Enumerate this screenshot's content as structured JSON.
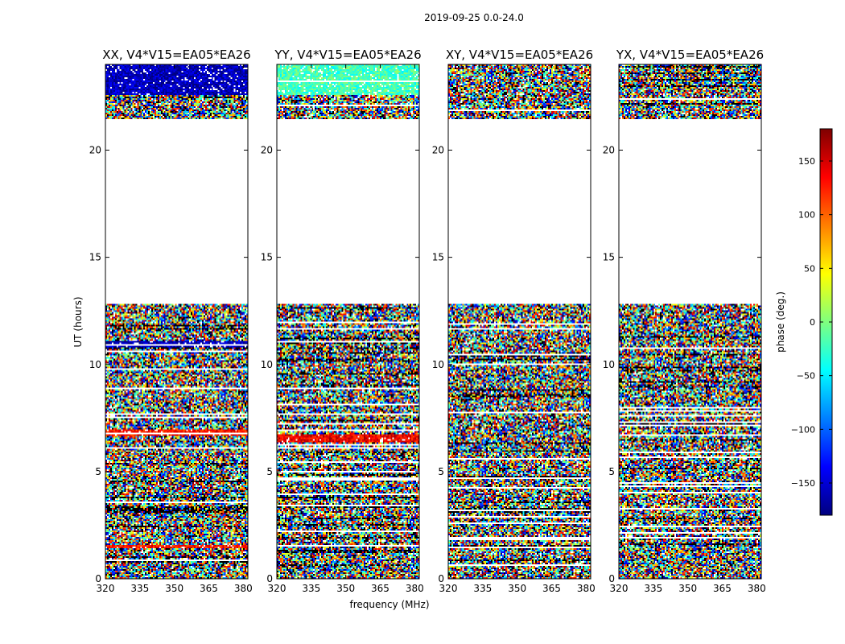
{
  "chart_data": {
    "type": "heatmap",
    "suptitle": "2019-09-25 0.0-24.0",
    "xlabel": "frequency (MHz)",
    "ylabel": "UT (hours)",
    "xlim": [
      320,
      382
    ],
    "ylim": [
      0,
      24
    ],
    "xticks": [
      320,
      335,
      350,
      365,
      380
    ],
    "xtick_labels": [
      "320",
      "335",
      "350",
      "365",
      "380"
    ],
    "yticks": [
      0,
      5,
      10,
      15,
      20
    ],
    "ytick_labels": [
      "0",
      "5",
      "10",
      "15",
      "20"
    ],
    "colormap": "jet",
    "colorbar": {
      "label": "phase (deg.)",
      "range": [
        -180,
        180
      ],
      "ticks": [
        -150,
        -100,
        -50,
        0,
        50,
        100,
        150
      ],
      "tick_labels": [
        "−150",
        "−100",
        "−50",
        "0",
        "50",
        "100",
        "150"
      ]
    },
    "data_ut_ranges": [
      [
        0.0,
        12.85
      ],
      [
        21.45,
        24.0
      ]
    ],
    "no_data_ut_range": [
      12.85,
      21.45
    ],
    "panels": [
      {
        "title": "XX, V4*V15=EA05*EA26",
        "pol": "XX",
        "coherent_ut_ranges": [
          [
            22.55,
            24.0
          ],
          [
            6.65,
            6.95
          ],
          [
            10.8,
            11.1
          ],
          [
            1.45,
            1.6
          ]
        ],
        "coherent_phase": [
          -160,
          130
        ]
      },
      {
        "title": "YY, V4*V15=EA05*EA26",
        "pol": "YY",
        "coherent_ut_ranges": [
          [
            22.55,
            24.0
          ],
          [
            6.4,
            6.75
          ]
        ],
        "coherent_phase": [
          -20,
          140
        ]
      },
      {
        "title": "XY, V4*V15=EA05*EA26",
        "pol": "XY",
        "coherent_ut_ranges": [],
        "coherent_phase": []
      },
      {
        "title": "YX, V4*V15=EA05*EA26",
        "pol": "YX",
        "coherent_ut_ranges": [],
        "coherent_phase": []
      }
    ]
  },
  "colors": {
    "jet": [
      "#00007f",
      "#0000ff",
      "#007fff",
      "#00ffff",
      "#7fff7f",
      "#ffff00",
      "#ff7f00",
      "#ff0000",
      "#7f0000"
    ]
  }
}
